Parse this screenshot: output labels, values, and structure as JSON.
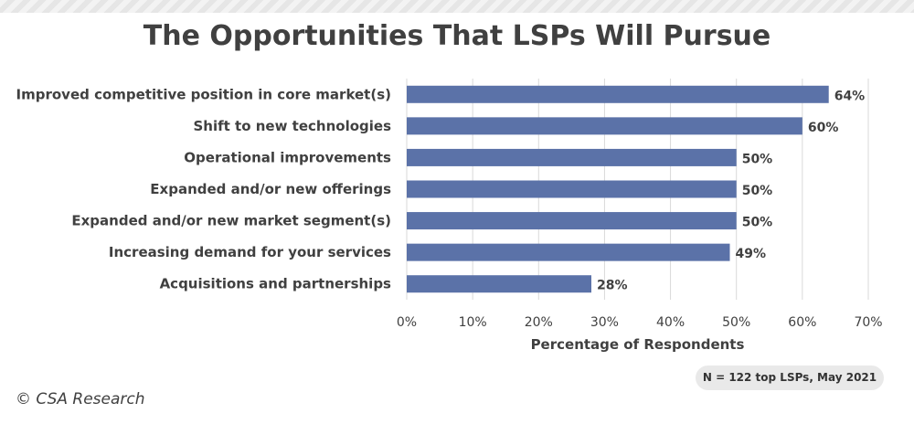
{
  "chart_data": {
    "type": "bar",
    "orientation": "horizontal",
    "title": "The Opportunities That LSPs Will Pursue",
    "xlabel": "Percentage of Respondents",
    "ylabel": "",
    "xlim": [
      0,
      70
    ],
    "tick_values": [
      0,
      10,
      20,
      30,
      40,
      50,
      60,
      70
    ],
    "tick_labels": [
      "0%",
      "10%",
      "20%",
      "30%",
      "40%",
      "50%",
      "60%",
      "70%"
    ],
    "categories": [
      "Improved competitive position in core market(s)",
      "Shift to new technologies",
      "Operational improvements",
      "Expanded and/or new offerings",
      "Expanded and/or new market segment(s)",
      "Increasing demand for your services",
      "Acquisitions and partnerships"
    ],
    "values": [
      64,
      60,
      50,
      50,
      50,
      49,
      28
    ],
    "value_labels": [
      "64%",
      "60%",
      "50%",
      "50%",
      "50%",
      "49%",
      "28%"
    ],
    "grid": "vertical",
    "bar_color": "#5b72a8"
  },
  "note": "N = 122 top LSPs, May 2021",
  "copyright": "© CSA Research"
}
